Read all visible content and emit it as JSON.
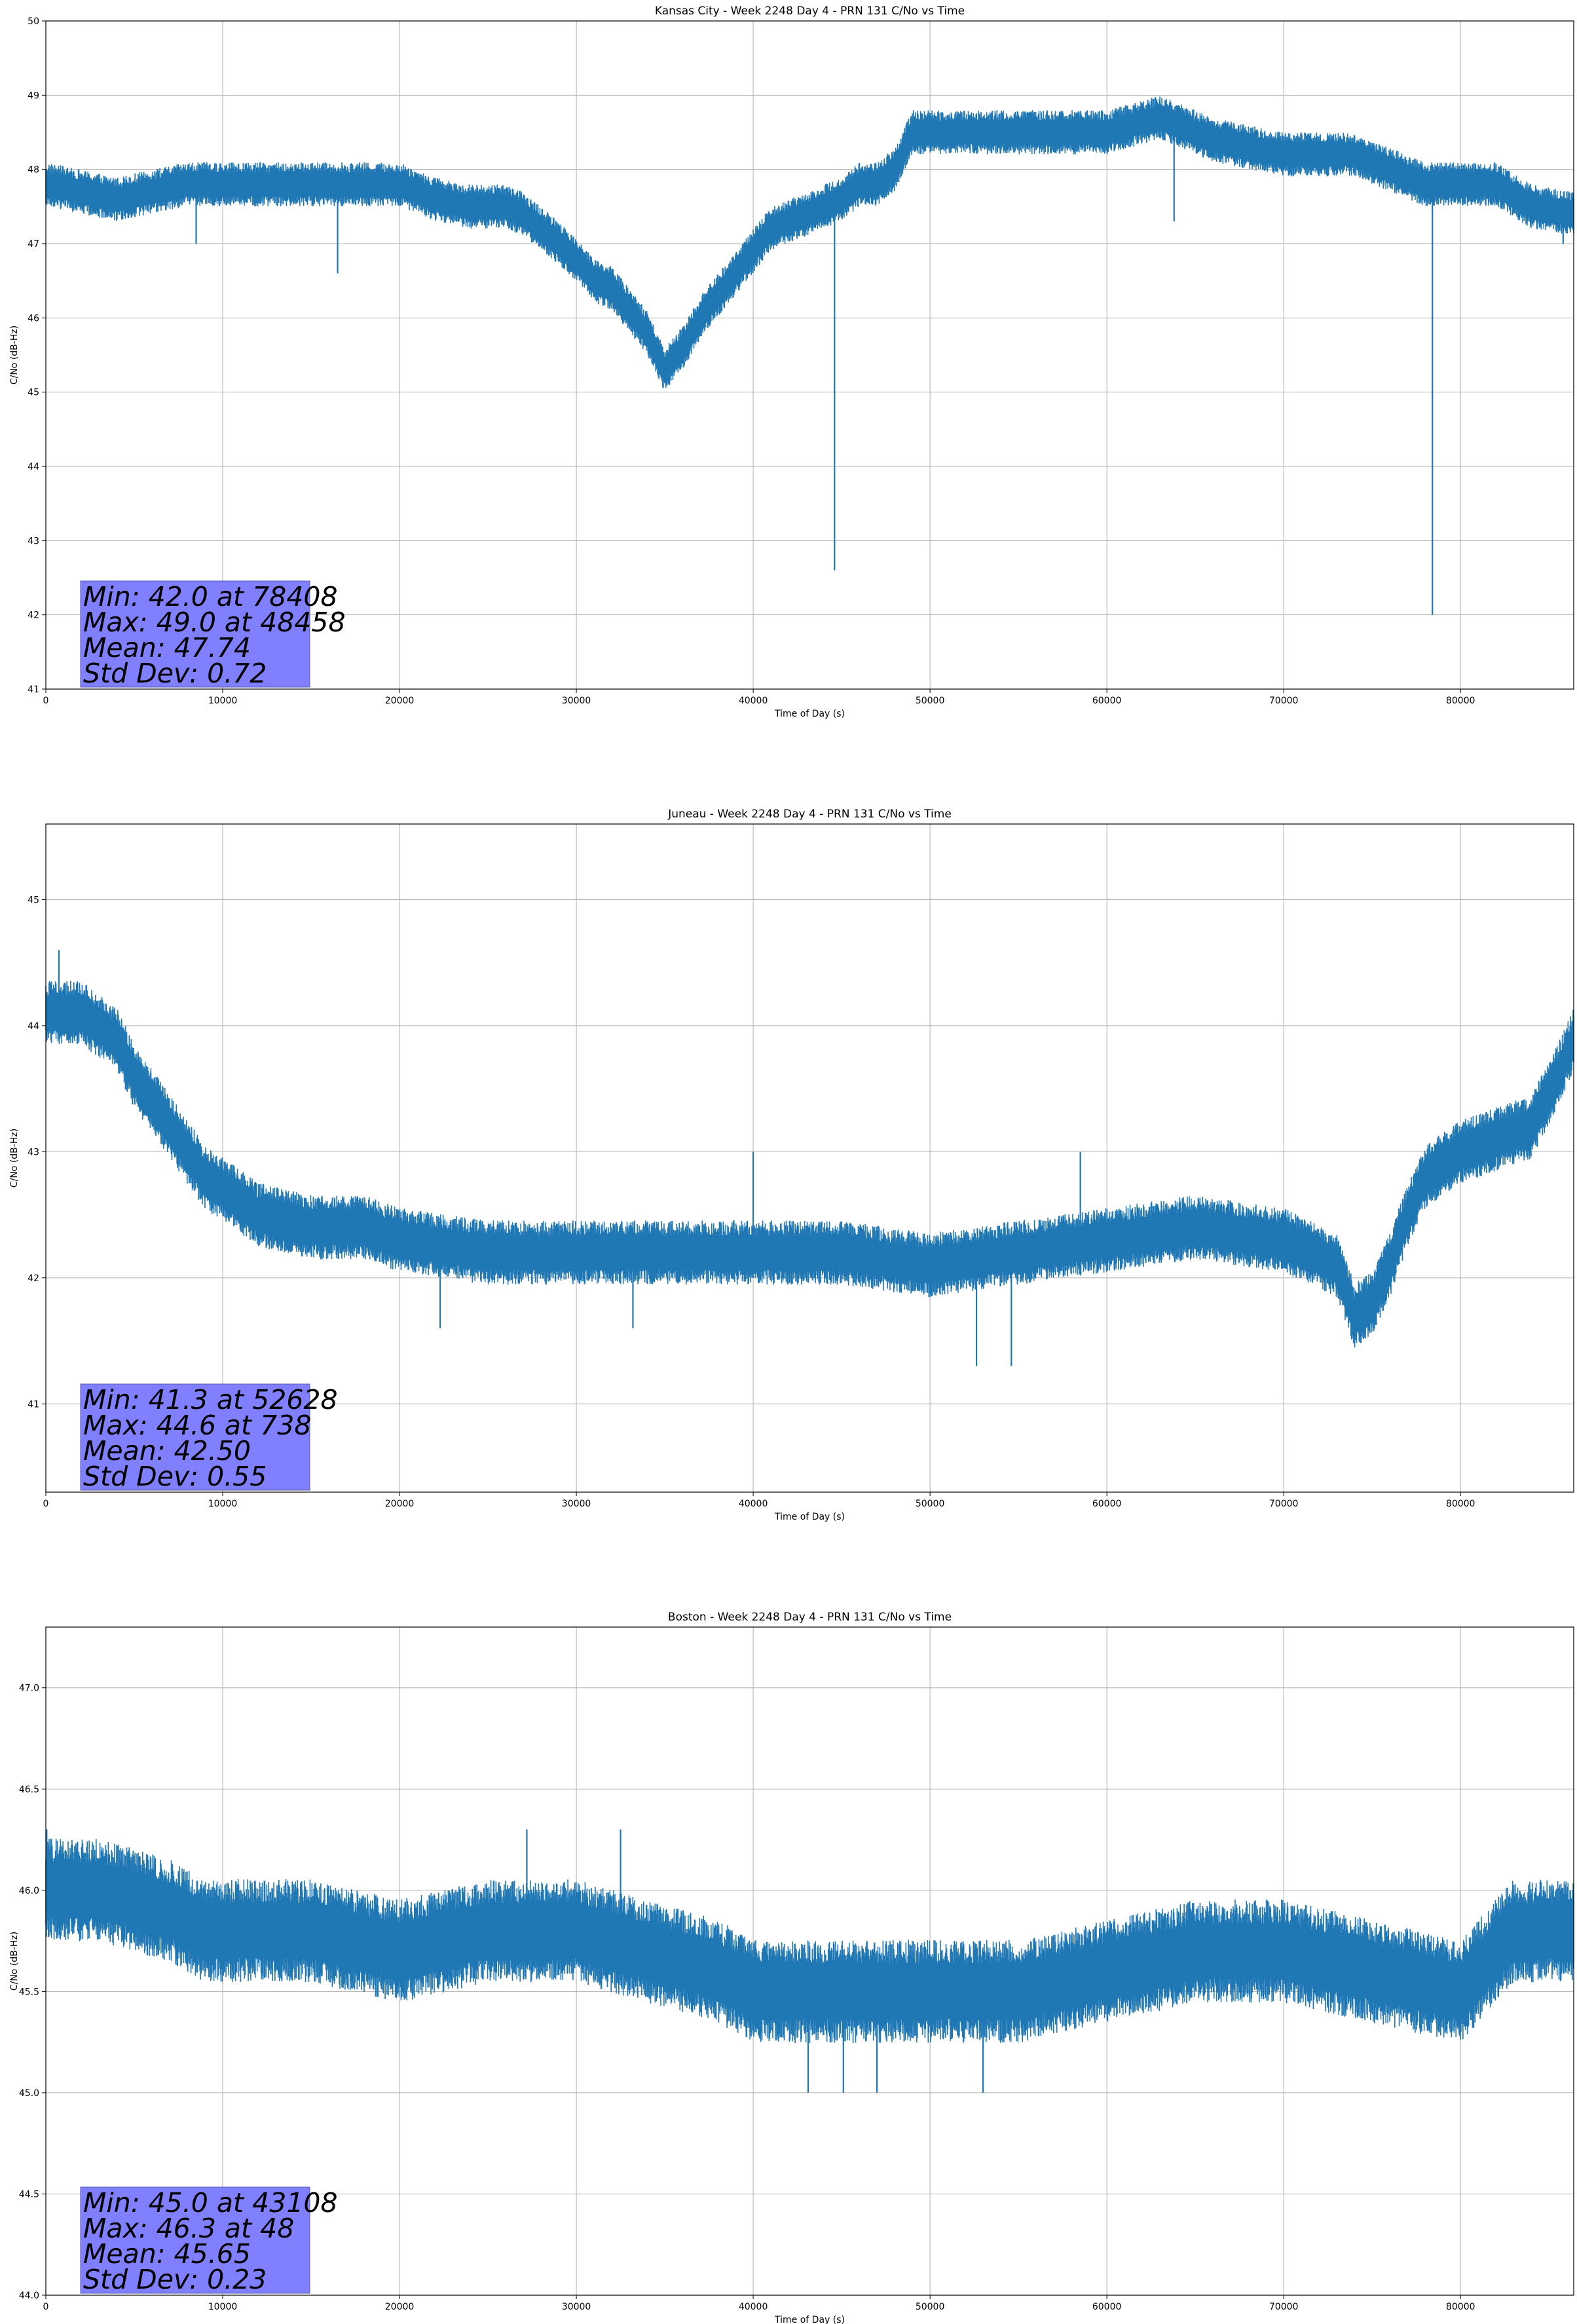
{
  "chart_data": [
    {
      "type": "line",
      "title": "Kansas City - Week 2248 Day 4 - PRN 131 C/No vs Time",
      "xlabel": "Time of Day (s)",
      "ylabel": "C/No (dB-Hz)",
      "xlim": [
        0,
        86400
      ],
      "ylim": [
        41,
        50
      ],
      "xticks": [
        0,
        10000,
        20000,
        30000,
        40000,
        50000,
        60000,
        70000,
        80000
      ],
      "yticks": [
        41,
        42,
        43,
        44,
        45,
        46,
        47,
        48,
        49,
        50
      ],
      "ytick_labels": [
        "41",
        "42",
        "43",
        "44",
        "45",
        "46",
        "47",
        "48",
        "49",
        "50"
      ],
      "grid": true,
      "color": "#1f77b4",
      "band_step": 0.35,
      "stats": [
        "Min: 42.0 at 78408",
        "Max: 49.0 at 48458",
        "Mean: 47.74",
        "Std Dev: 0.72"
      ],
      "series": [
        {
          "x": [
            0,
            2000,
            4000,
            6000,
            8000,
            10000,
            12000,
            14000,
            16000,
            18000,
            20000,
            22000,
            24000,
            26000,
            27000,
            28000,
            29000,
            30000,
            31000,
            32000,
            33000,
            34000,
            35000,
            36000,
            37000,
            38000,
            39000,
            40000,
            41000,
            42000,
            43000,
            44000,
            45000,
            46000,
            47000,
            48000,
            49000,
            52000,
            56000,
            60000,
            63000,
            66000,
            68000,
            70000,
            74000,
            78000,
            79000,
            82000,
            84000,
            86400
          ],
          "y": [
            47.8,
            47.7,
            47.6,
            47.7,
            47.8,
            47.8,
            47.8,
            47.8,
            47.8,
            47.8,
            47.8,
            47.6,
            47.5,
            47.5,
            47.4,
            47.2,
            47.0,
            46.8,
            46.5,
            46.4,
            46.1,
            45.8,
            45.3,
            45.6,
            46.0,
            46.3,
            46.6,
            46.9,
            47.2,
            47.3,
            47.4,
            47.5,
            47.6,
            47.8,
            47.8,
            48.0,
            48.5,
            48.5,
            48.5,
            48.5,
            48.7,
            48.4,
            48.3,
            48.2,
            48.2,
            47.8,
            47.8,
            47.8,
            47.5,
            47.4
          ]
        },
        {
          "x": [
            8500,
            16500,
            44600,
            63800,
            78408,
            85800
          ],
          "y": [
            47.0,
            46.6,
            42.6,
            47.3,
            42.0,
            47.0
          ]
        }
      ]
    },
    {
      "type": "line",
      "title": "Juneau - Week 2248 Day 4 - PRN 131 C/No vs Time",
      "xlabel": "Time of Day (s)",
      "ylabel": "C/No (dB-Hz)",
      "xlim": [
        0,
        86400
      ],
      "ylim": [
        40.3,
        45.6
      ],
      "xticks": [
        0,
        10000,
        20000,
        30000,
        40000,
        50000,
        60000,
        70000,
        80000
      ],
      "yticks": [
        41,
        42,
        43,
        44,
        45
      ],
      "ytick_labels": [
        "41",
        "42",
        "43",
        "44",
        "45"
      ],
      "grid": true,
      "color": "#1f77b4",
      "band_step": 0.3,
      "stats": [
        "Min: 41.3 at 52628",
        "Max: 44.6 at 738",
        "Mean: 42.50",
        "Std Dev: 0.55"
      ],
      "series": [
        {
          "x": [
            0,
            2000,
            4000,
            5000,
            6000,
            7000,
            8000,
            9000,
            10000,
            12000,
            15000,
            18000,
            20000,
            25000,
            30000,
            35000,
            40000,
            45000,
            50000,
            55000,
            60000,
            65000,
            70000,
            73000,
            74000,
            75000,
            76000,
            77000,
            78000,
            80000,
            82000,
            84000,
            85500,
            86400
          ],
          "y": [
            44.1,
            44.1,
            43.9,
            43.6,
            43.4,
            43.2,
            43.0,
            42.8,
            42.7,
            42.5,
            42.4,
            42.4,
            42.3,
            42.2,
            42.2,
            42.2,
            42.2,
            42.2,
            42.1,
            42.2,
            42.3,
            42.4,
            42.3,
            42.1,
            41.7,
            41.8,
            42.1,
            42.5,
            42.8,
            43.0,
            43.1,
            43.2,
            43.6,
            43.9
          ]
        },
        {
          "x": [
            738,
            22300,
            33200,
            40000,
            52628,
            54600,
            58500
          ],
          "y": [
            44.6,
            41.6,
            41.6,
            43.0,
            41.3,
            41.3,
            43.0
          ]
        }
      ]
    },
    {
      "type": "line",
      "title": "Boston - Week 2248 Day 4 - PRN 131 C/No vs Time",
      "xlabel": "Time of Day (s)",
      "ylabel": "C/No (dB-Hz)",
      "xlim": [
        0,
        86400
      ],
      "ylim": [
        44.0,
        47.3
      ],
      "xticks": [
        0,
        10000,
        20000,
        30000,
        40000,
        50000,
        60000,
        70000,
        80000
      ],
      "yticks": [
        44.0,
        44.5,
        45.0,
        45.5,
        46.0,
        46.5,
        47.0
      ],
      "ytick_labels": [
        "44.0",
        "44.5",
        "45.0",
        "45.5",
        "46.0",
        "46.5",
        "47.0"
      ],
      "grid": true,
      "color": "#1f77b4",
      "band_step": 0.3,
      "stats": [
        "Min: 45.0 at 43108",
        "Max: 46.3 at 48",
        "Mean: 45.65",
        "Std Dev: 0.23"
      ],
      "series": [
        {
          "x": [
            0,
            3000,
            7000,
            9000,
            15000,
            20000,
            25000,
            30000,
            34000,
            38000,
            40000,
            43000,
            47000,
            50000,
            55000,
            60000,
            65000,
            70000,
            75000,
            80000,
            83000,
            86400
          ],
          "y": [
            46.0,
            46.0,
            45.9,
            45.8,
            45.8,
            45.7,
            45.8,
            45.8,
            45.7,
            45.6,
            45.5,
            45.5,
            45.5,
            45.5,
            45.5,
            45.6,
            45.7,
            45.7,
            45.6,
            45.5,
            45.8,
            45.8
          ]
        },
        {
          "x": [
            48,
            27200,
            32500,
            43108,
            45100,
            47000,
            53000
          ],
          "y": [
            46.3,
            46.3,
            46.3,
            45.0,
            45.0,
            45.0,
            45.0
          ]
        }
      ]
    }
  ]
}
